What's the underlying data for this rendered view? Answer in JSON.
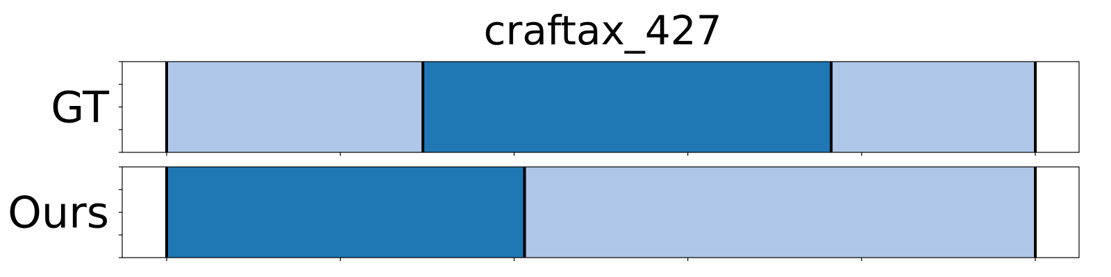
{
  "chart_data": {
    "type": "segmentation-bar",
    "title": "craftax_427",
    "xlim": [
      0,
      1
    ],
    "rows": [
      {
        "label": "GT",
        "segments": [
          {
            "start": 0.0,
            "end": 0.295,
            "color": "#aec7e8"
          },
          {
            "start": 0.295,
            "end": 0.765,
            "color": "#1f77b4"
          },
          {
            "start": 0.765,
            "end": 1.0,
            "color": "#aec7e8"
          }
        ],
        "boundaries": [
          0.0,
          0.295,
          0.765,
          1.0
        ]
      },
      {
        "label": "Ours",
        "segments": [
          {
            "start": 0.0,
            "end": 0.412,
            "color": "#1f77b4"
          },
          {
            "start": 0.412,
            "end": 1.0,
            "color": "#aec7e8"
          }
        ],
        "boundaries": [
          0.0,
          0.412,
          1.0
        ]
      }
    ],
    "x_ticks": [
      0.0,
      0.2,
      0.4,
      0.6,
      0.8,
      1.0
    ],
    "y_tick_count": 5,
    "colors": {
      "light": "#aec7e8",
      "dark": "#1f77b4",
      "boundary": "#000000",
      "frame": "#000000"
    }
  }
}
